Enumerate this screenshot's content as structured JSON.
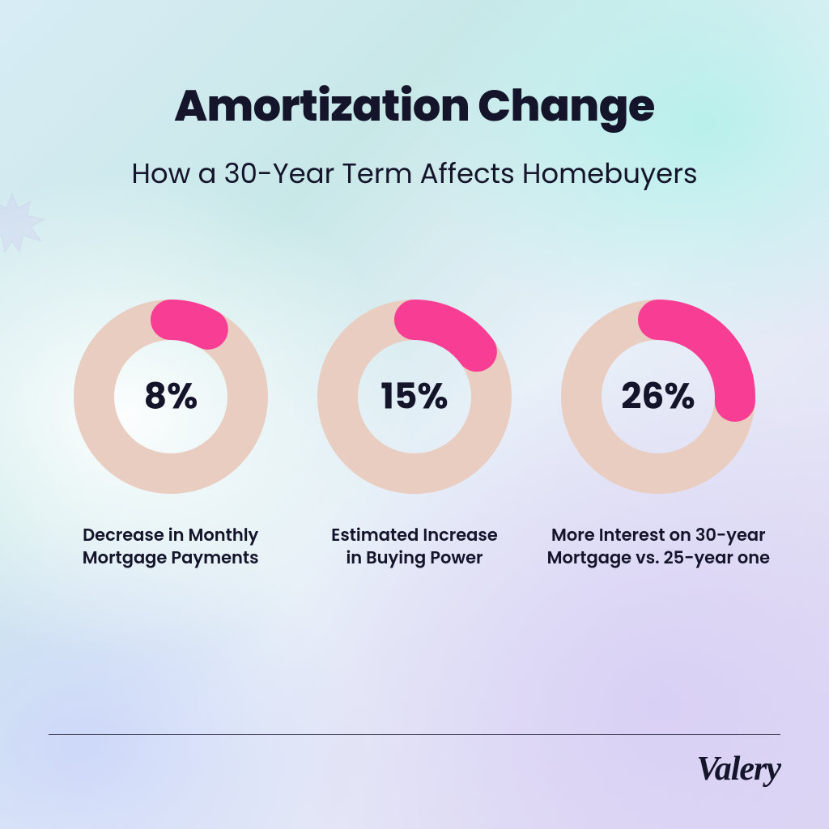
{
  "title": "Amortization Change",
  "subtitle": "How a 30-Year Term Affects Homebuyers",
  "brand": "Valery",
  "chart": {
    "type": "donut-set",
    "ring_color": "#e8cdc0",
    "arc_color": "#f83d95",
    "text_color": "#14142b",
    "ring_thickness": 50,
    "outer_radius": 120,
    "start_angle_deg": 0,
    "value_fontsize": 44,
    "caption_fontsize": 21,
    "items": [
      {
        "percent": 8,
        "label": "8%",
        "caption_line1": "Decrease in Monthly",
        "caption_line2": "Mortgage Payments"
      },
      {
        "percent": 15,
        "label": "15%",
        "caption_line1": "Estimated Increase",
        "caption_line2": "in Buying Power"
      },
      {
        "percent": 26,
        "label": "26%",
        "caption_line1": "More Interest on 30-year",
        "caption_line2": "Mortgage vs. 25-year one"
      }
    ]
  },
  "background": {
    "gradient_colors": [
      "#d8ecf5",
      "#c8e8e8",
      "#e8f0f8",
      "#e0d8f2"
    ],
    "highlight_colors": [
      "#ffffff",
      "#b4f0eb",
      "#d7cdf5",
      "#c8d2fa"
    ]
  }
}
